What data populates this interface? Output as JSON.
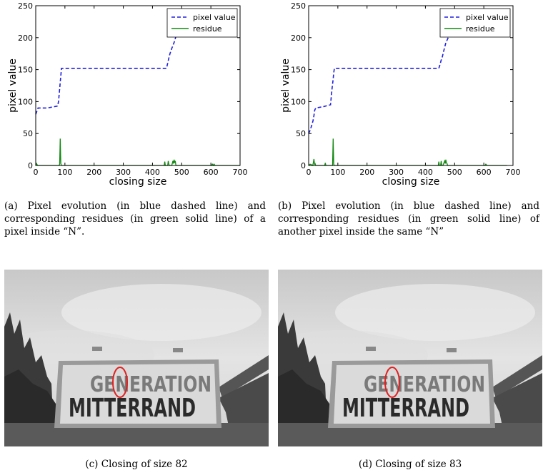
{
  "figure": {
    "captions": {
      "a": "(a) Pixel evolution (in blue dashed line) and corresponding residues (in green solid line) of a pixel inside “N”.",
      "b": "(b) Pixel evolution (in blue dashed line) and corresponding residues (in green solid line) of another pixel inside the same “N”",
      "c": "(c) Closing of size 82",
      "d": "(d) Closing of size 83"
    },
    "photo_c": {
      "sign_top": "GENERATION",
      "sign_bottom": "MITTERRAND"
    },
    "photo_d": {
      "sign_top": "GENERATION",
      "sign_bottom": "MITTERRAND"
    }
  },
  "chart_data": [
    {
      "type": "line",
      "xlabel": "closing size",
      "ylabel": "pixel value",
      "xlim": [
        0,
        700
      ],
      "ylim": [
        0,
        250
      ],
      "xticks": [
        0,
        100,
        200,
        300,
        400,
        500,
        600,
        700
      ],
      "yticks": [
        0,
        50,
        100,
        150,
        200,
        250
      ],
      "legend": "top-right",
      "colors": {
        "pixel value": "#1f1fe0",
        "residue": "#118811"
      },
      "series": [
        {
          "name": "pixel value",
          "style": "dashed",
          "x": [
            0,
            8,
            40,
            75,
            78,
            80,
            82,
            84,
            86,
            88,
            448,
            452,
            456,
            460,
            466,
            472,
            476,
            480,
            615
          ],
          "y": [
            80,
            90,
            90,
            93,
            100,
            110,
            120,
            130,
            140,
            152,
            152,
            160,
            168,
            175,
            183,
            190,
            195,
            202,
            202
          ]
        },
        {
          "name": "residue",
          "style": "solid",
          "x": [
            0,
            3,
            5,
            7,
            80,
            82,
            84,
            86,
            88,
            440,
            442,
            444,
            446,
            452,
            454,
            456,
            458,
            466,
            470,
            472,
            474,
            476,
            478,
            480,
            482,
            602,
            605,
            608,
            611,
            614,
            700
          ],
          "y": [
            0,
            3,
            1,
            0,
            0,
            2,
            42,
            3,
            0,
            0,
            6,
            0,
            0,
            0,
            7,
            2,
            0,
            0,
            7,
            3,
            9,
            4,
            7,
            1,
            0,
            0,
            2,
            0,
            2,
            0,
            0
          ]
        }
      ]
    },
    {
      "type": "line",
      "xlabel": "closing size",
      "ylabel": "pixel value",
      "xlim": [
        0,
        700
      ],
      "ylim": [
        0,
        250
      ],
      "xticks": [
        0,
        100,
        200,
        300,
        400,
        500,
        600,
        700
      ],
      "yticks": [
        0,
        50,
        100,
        150,
        200,
        250
      ],
      "legend": "top-right",
      "colors": {
        "pixel value": "#1f1fe0",
        "residue": "#118811"
      },
      "series": [
        {
          "name": "pixel value",
          "style": "dashed",
          "x": [
            0,
            5,
            10,
            15,
            18,
            20,
            22,
            25,
            50,
            75,
            80,
            84,
            86,
            88,
            446,
            450,
            454,
            458,
            462,
            466,
            470,
            476,
            480,
            615
          ],
          "y": [
            50,
            55,
            62,
            70,
            78,
            85,
            88,
            90,
            92,
            95,
            120,
            135,
            145,
            152,
            152,
            158,
            165,
            170,
            178,
            185,
            192,
            198,
            202,
            202
          ]
        },
        {
          "name": "residue",
          "style": "solid",
          "x": [
            0,
            5,
            10,
            14,
            16,
            18,
            20,
            22,
            24,
            55,
            57,
            59,
            82,
            84,
            86,
            88,
            444,
            446,
            448,
            452,
            454,
            456,
            460,
            466,
            468,
            470,
            472,
            474,
            476,
            604,
            607,
            611,
            680
          ],
          "y": [
            0,
            2,
            1,
            0,
            4,
            10,
            2,
            3,
            0,
            0,
            4,
            0,
            0,
            42,
            2,
            0,
            0,
            6,
            0,
            0,
            7,
            0,
            0,
            7,
            3,
            9,
            4,
            3,
            0,
            0,
            2,
            0,
            0
          ]
        }
      ]
    }
  ]
}
